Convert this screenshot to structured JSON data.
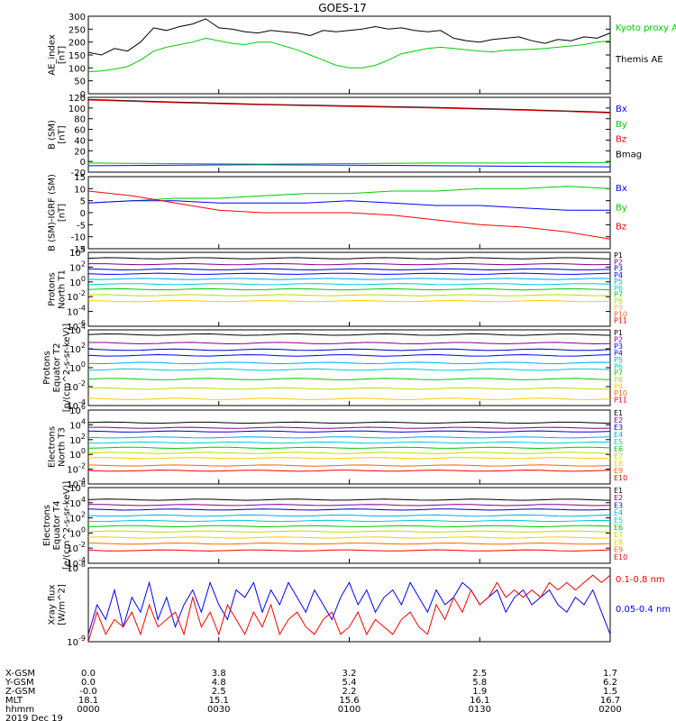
{
  "title": "GOES-17",
  "colors": {
    "black": "#000000",
    "green": "#00cc00",
    "blue": "#0000ff",
    "red": "#ff0000"
  },
  "chart_data": [
    {
      "type": "line",
      "ylabel": "AE_index [nT]",
      "ylim": [
        0,
        300
      ],
      "yticks": [
        "0",
        "50",
        "100",
        "150",
        "200",
        "250",
        "300"
      ],
      "legend": [
        {
          "label": "Kyoto proxy AE",
          "color": "#00cc00"
        },
        {
          "label": "Themis AE",
          "color": "#000000"
        }
      ],
      "series": [
        {
          "name": "Themis AE",
          "color": "#000000",
          "x": [
            0,
            3,
            6,
            9,
            12,
            15,
            18,
            21,
            24,
            27,
            30,
            33,
            36,
            39,
            42,
            45,
            48,
            51,
            54,
            57,
            60,
            63,
            66,
            69,
            72,
            75,
            78,
            81,
            84,
            87,
            90,
            93,
            96,
            99,
            102,
            105,
            108,
            111,
            114,
            117,
            120
          ],
          "y": [
            160,
            150,
            175,
            165,
            200,
            255,
            245,
            260,
            270,
            290,
            255,
            250,
            240,
            235,
            245,
            240,
            235,
            225,
            245,
            240,
            245,
            250,
            260,
            250,
            255,
            245,
            240,
            245,
            215,
            205,
            200,
            210,
            215,
            220,
            205,
            195,
            210,
            205,
            220,
            215,
            235
          ]
        },
        {
          "name": "Kyoto proxy AE",
          "color": "#00cc00",
          "x": [
            0,
            3,
            6,
            9,
            12,
            15,
            18,
            21,
            24,
            27,
            30,
            33,
            36,
            39,
            42,
            45,
            48,
            51,
            54,
            57,
            60,
            63,
            66,
            69,
            72,
            75,
            78,
            81,
            84,
            87,
            90,
            93,
            96,
            99,
            102,
            105,
            108,
            111,
            114,
            117,
            120
          ],
          "y": [
            85,
            88,
            95,
            105,
            130,
            165,
            180,
            190,
            200,
            215,
            205,
            195,
            190,
            200,
            200,
            185,
            170,
            150,
            130,
            110,
            100,
            100,
            110,
            130,
            155,
            165,
            175,
            180,
            175,
            170,
            165,
            162,
            168,
            170,
            172,
            175,
            180,
            185,
            190,
            200,
            205
          ]
        }
      ]
    },
    {
      "type": "line",
      "ylabel": "B (SM) [nT]",
      "ylim": [
        -20,
        120
      ],
      "yticks": [
        "-20",
        "0",
        "20",
        "40",
        "60",
        "80",
        "100",
        "120"
      ],
      "legend": [
        {
          "label": "Bx",
          "color": "#0000ff"
        },
        {
          "label": "By",
          "color": "#00cc00"
        },
        {
          "label": "Bz",
          "color": "#ff0000"
        },
        {
          "label": "Bmag",
          "color": "#000000"
        }
      ],
      "series": [
        {
          "name": "Bmag",
          "color": "#000000",
          "x": [
            0,
            20,
            40,
            60,
            80,
            100,
            120
          ],
          "y": [
            116,
            111,
            107,
            104,
            101,
            97,
            92
          ]
        },
        {
          "name": "Bz",
          "color": "#ff0000",
          "x": [
            0,
            20,
            40,
            60,
            80,
            100,
            120
          ],
          "y": [
            115,
            110,
            106,
            103,
            100,
            96,
            91
          ]
        },
        {
          "name": "Bx",
          "color": "#0000ff",
          "x": [
            0,
            20,
            40,
            60,
            80,
            100,
            120
          ],
          "y": [
            -8,
            -7,
            -6,
            -7,
            -8,
            -9,
            -10
          ]
        },
        {
          "name": "By",
          "color": "#00cc00",
          "x": [
            0,
            20,
            40,
            60,
            80,
            100,
            120
          ],
          "y": [
            -3,
            -4,
            -5,
            -4,
            -3,
            -3,
            -2
          ]
        }
      ]
    },
    {
      "type": "line",
      "ylabel": "B (SM)-IGRF (SM) [nT]",
      "ylim": [
        -15,
        15
      ],
      "yticks": [
        "-15",
        "-10",
        "-5",
        "0",
        "5",
        "10",
        "15"
      ],
      "legend": [
        {
          "label": "Bx",
          "color": "#0000ff"
        },
        {
          "label": "By",
          "color": "#00cc00"
        },
        {
          "label": "Bz",
          "color": "#ff0000"
        }
      ],
      "series": [
        {
          "name": "By",
          "color": "#00cc00",
          "x": [
            0,
            10,
            20,
            30,
            40,
            50,
            60,
            70,
            80,
            90,
            100,
            110,
            120
          ],
          "y": [
            4,
            5,
            6,
            6,
            7,
            8,
            8,
            9,
            9,
            10,
            10,
            11,
            10
          ]
        },
        {
          "name": "Bx",
          "color": "#0000ff",
          "x": [
            0,
            10,
            20,
            30,
            40,
            50,
            60,
            70,
            80,
            90,
            100,
            110,
            120
          ],
          "y": [
            4,
            5,
            5,
            4,
            4,
            4,
            5,
            4,
            3,
            3,
            2,
            1,
            1
          ]
        },
        {
          "name": "Bz",
          "color": "#ff0000",
          "x": [
            0,
            10,
            20,
            30,
            40,
            50,
            60,
            70,
            80,
            90,
            100,
            110,
            120
          ],
          "y": [
            9,
            7,
            4,
            1,
            0,
            0,
            0,
            -1,
            -3,
            -5,
            -6,
            -8,
            -11
          ]
        }
      ]
    },
    {
      "type": "line",
      "ylabel": "Protons North T1",
      "ylog": true,
      "ylim": [
        -6,
        4
      ],
      "yticks": [
        "10^-6",
        "10^-4",
        "10^-2",
        "10^0",
        "10^2",
        "10^4"
      ],
      "channels": [
        {
          "label": "P1",
          "color": "#000000",
          "level": 3.2
        },
        {
          "label": "P2",
          "color": "#880088",
          "level": 2.4
        },
        {
          "label": "P3",
          "color": "#0000cc",
          "level": 1.7
        },
        {
          "label": "P4",
          "color": "#0000ff",
          "level": 1.1
        },
        {
          "label": "P5",
          "color": "#00aaff",
          "level": 0.4
        },
        {
          "label": "P6",
          "color": "#00cccc",
          "level": -0.3
        },
        {
          "label": "P7",
          "color": "#00cc00",
          "level": -1.0
        },
        {
          "label": "P8",
          "color": "#bbdd00",
          "level": -1.8
        },
        {
          "label": "P9",
          "color": "#ffcc00",
          "level": -2.6
        },
        {
          "label": "P10",
          "color": "#ff6600",
          "level": null
        },
        {
          "label": "P11",
          "color": "#ff0000",
          "level": null
        }
      ]
    },
    {
      "type": "line",
      "ylabel": "Protons Equator T2 [p/(cm^2-s-sr-keV)]",
      "ylog": true,
      "ylim": [
        -4,
        4
      ],
      "yticks": [
        "10^-4",
        "10^-2",
        "10^0",
        "10^2",
        "10^4"
      ],
      "channels": [
        {
          "label": "P1",
          "color": "#000000",
          "level": 3.5
        },
        {
          "label": "P2",
          "color": "#880088",
          "level": 2.6
        },
        {
          "label": "P3",
          "color": "#0000cc",
          "level": 1.9
        },
        {
          "label": "P4",
          "color": "#0000ff",
          "level": 1.3
        },
        {
          "label": "P5",
          "color": "#00aaff",
          "level": 0.5
        },
        {
          "label": "P6",
          "color": "#00cccc",
          "level": -0.2
        },
        {
          "label": "P7",
          "color": "#00cc00",
          "level": -1.2
        },
        {
          "label": "P8",
          "color": "#bbdd00",
          "level": -2.2
        },
        {
          "label": "P9",
          "color": "#ffcc00",
          "level": -3.3
        },
        {
          "label": "P10",
          "color": "#ff6600",
          "level": null
        },
        {
          "label": "P11",
          "color": "#ff0000",
          "level": null
        }
      ]
    },
    {
      "type": "line",
      "ylabel": "Electrons North T3",
      "ylog": true,
      "ylim": [
        -4,
        6
      ],
      "yticks": [
        "10^-4",
        "10^-2",
        "10^0",
        "10^2",
        "10^4",
        "10^6"
      ],
      "channels": [
        {
          "label": "E1",
          "color": "#000000",
          "level": 4.3
        },
        {
          "label": "E2",
          "color": "#880088",
          "level": 3.6
        },
        {
          "label": "E3",
          "color": "#0000cc",
          "level": 3.1
        },
        {
          "label": "E4",
          "color": "#00aaff",
          "level": 2.3
        },
        {
          "label": "E5",
          "color": "#00cccc",
          "level": 1.6
        },
        {
          "label": "E6",
          "color": "#00cc00",
          "level": 0.9
        },
        {
          "label": "E7",
          "color": "#bbdd00",
          "level": 0.2
        },
        {
          "label": "E8",
          "color": "#ffcc00",
          "level": -0.5
        },
        {
          "label": "E9",
          "color": "#ff6600",
          "level": -1.5
        },
        {
          "label": "E10",
          "color": "#ff0000",
          "level": -2.2
        }
      ]
    },
    {
      "type": "line",
      "ylabel": "Electrons Equator T4 [e/(cm^2-s-sr-keV)]",
      "ylog": true,
      "ylim": [
        -4,
        6
      ],
      "yticks": [
        "10^-4",
        "10^-2",
        "10^0",
        "10^2",
        "10^4",
        "10^6"
      ],
      "channels": [
        {
          "label": "E1",
          "color": "#000000",
          "level": 4.4
        },
        {
          "label": "E2",
          "color": "#880088",
          "level": 3.7
        },
        {
          "label": "E3",
          "color": "#0000cc",
          "level": 3.1
        },
        {
          "label": "E4",
          "color": "#00aaff",
          "level": 2.3
        },
        {
          "label": "E5",
          "color": "#00cccc",
          "level": 1.6
        },
        {
          "label": "E6",
          "color": "#00cc00",
          "level": 0.9
        },
        {
          "label": "E7",
          "color": "#bbdd00",
          "level": 0.2
        },
        {
          "label": "E8",
          "color": "#ffcc00",
          "level": -0.6
        },
        {
          "label": "E9",
          "color": "#ff6600",
          "level": -1.4
        },
        {
          "label": "E10",
          "color": "#ff0000",
          "level": -2.3
        }
      ]
    },
    {
      "type": "line",
      "ylabel": "Xray flux [W/m^2]",
      "ylog": true,
      "ylim": [
        -9,
        -8
      ],
      "yticks": [
        "10^-9",
        "10^-8"
      ],
      "legend": [
        {
          "label": "0.1-0.8 nm",
          "color": "#ff0000"
        },
        {
          "label": "0.05-0.4 nm",
          "color": "#0000ff"
        }
      ],
      "series": [
        {
          "name": "0.05-0.4 nm",
          "color": "#0000ff",
          "x": [
            0,
            2,
            4,
            6,
            8,
            10,
            12,
            14,
            16,
            18,
            20,
            22,
            24,
            26,
            28,
            30,
            32,
            34,
            36,
            38,
            40,
            42,
            44,
            46,
            48,
            50,
            52,
            54,
            56,
            58,
            60,
            62,
            64,
            66,
            68,
            70,
            72,
            74,
            76,
            78,
            80,
            82,
            84,
            86,
            88,
            90,
            92,
            94,
            96,
            98,
            100,
            102,
            104,
            106,
            108,
            110,
            112,
            114,
            116,
            118,
            120
          ],
          "y": [
            -8.9,
            -8.5,
            -8.7,
            -8.3,
            -8.8,
            -8.4,
            -8.6,
            -8.2,
            -8.7,
            -8.4,
            -8.8,
            -8.5,
            -8.3,
            -8.6,
            -8.2,
            -8.5,
            -8.7,
            -8.3,
            -8.4,
            -8.2,
            -8.6,
            -8.3,
            -8.5,
            -8.2,
            -8.4,
            -8.6,
            -8.3,
            -8.5,
            -8.7,
            -8.4,
            -8.2,
            -8.5,
            -8.3,
            -8.6,
            -8.4,
            -8.3,
            -8.5,
            -8.2,
            -8.4,
            -8.6,
            -8.3,
            -8.5,
            -8.4,
            -8.2,
            -8.3,
            -8.5,
            -8.4,
            -8.3,
            -8.6,
            -8.4,
            -8.3,
            -8.5,
            -8.4,
            -8.3,
            -8.5,
            -8.6,
            -8.4,
            -8.5,
            -8.3,
            -8.6,
            -8.9
          ]
        },
        {
          "name": "0.1-0.8 nm",
          "color": "#ff0000",
          "x": [
            0,
            2,
            4,
            6,
            8,
            10,
            12,
            14,
            16,
            18,
            20,
            22,
            24,
            26,
            28,
            30,
            32,
            34,
            36,
            38,
            40,
            42,
            44,
            46,
            48,
            50,
            52,
            54,
            56,
            58,
            60,
            62,
            64,
            66,
            68,
            70,
            72,
            74,
            76,
            78,
            80,
            82,
            84,
            86,
            88,
            90,
            92,
            94,
            96,
            98,
            100,
            102,
            104,
            106,
            108,
            110,
            112,
            114,
            116,
            118,
            120
          ],
          "y": [
            -9.0,
            -8.6,
            -8.9,
            -8.7,
            -8.8,
            -8.6,
            -8.9,
            -8.5,
            -8.8,
            -8.7,
            -8.6,
            -8.9,
            -8.4,
            -8.8,
            -8.6,
            -8.9,
            -8.5,
            -8.7,
            -8.9,
            -8.6,
            -8.8,
            -8.5,
            -8.9,
            -8.7,
            -8.6,
            -8.8,
            -8.9,
            -8.7,
            -8.6,
            -8.9,
            -8.8,
            -8.6,
            -8.9,
            -8.7,
            -8.8,
            -8.9,
            -8.7,
            -8.6,
            -8.8,
            -8.9,
            -8.5,
            -8.7,
            -8.4,
            -8.6,
            -8.3,
            -8.5,
            -8.4,
            -8.2,
            -8.4,
            -8.3,
            -8.4,
            -8.3,
            -8.4,
            -8.2,
            -8.3,
            -8.2,
            -8.3,
            -8.2,
            -8.1,
            -8.2,
            -8.1
          ]
        }
      ]
    }
  ],
  "xaxis": {
    "row_labels": [
      "X-GSM",
      "Y-GSM",
      "Z-GSM",
      "MLT",
      "hhmm",
      "2019 Dec 19"
    ],
    "ticks": [
      {
        "x": 0,
        "values": [
          "0.0",
          "0.0",
          "-0.0",
          "18.1",
          "0000"
        ]
      },
      {
        "x": 30,
        "values": [
          "3.8",
          "4.8",
          "2.5",
          "15.1",
          "0030"
        ]
      },
      {
        "x": 60,
        "values": [
          "3.2",
          "5.4",
          "2.2",
          "15.6",
          "0100"
        ]
      },
      {
        "x": 90,
        "values": [
          "2.5",
          "5.8",
          "1.9",
          "16.1",
          "0130"
        ]
      },
      {
        "x": 120,
        "values": [
          "1.7",
          "6.2",
          "1.5",
          "16.7",
          "0200"
        ]
      }
    ]
  }
}
